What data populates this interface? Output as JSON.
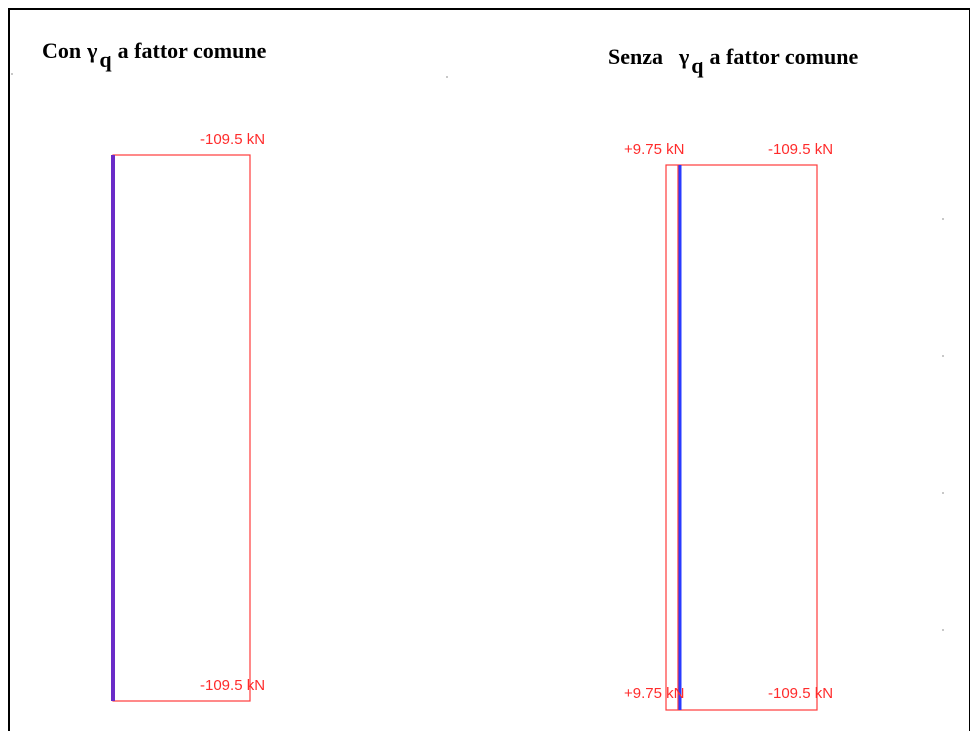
{
  "left_panel": {
    "title_prefix": "Con",
    "title_symbol": "γ",
    "title_subscript": "q",
    "title_suffix": "a fattor comune",
    "top_value_label": "-109.5 kN",
    "bottom_value_label": "-109.5 kN"
  },
  "right_panel": {
    "title_prefix": "Senza",
    "title_symbol": "γ",
    "title_subscript": "q",
    "title_suffix": "a fattor comune",
    "top_left_value_label": "+9.75 kN",
    "top_right_value_label": "-109.5 kN",
    "bottom_left_value_label": "+9.75 kN",
    "bottom_right_value_label": "-109.5 kN"
  },
  "colors": {
    "diagram_outline": "#ff3b3b",
    "member_left": "#6a2bc8",
    "member_right": "#2a3bff"
  }
}
